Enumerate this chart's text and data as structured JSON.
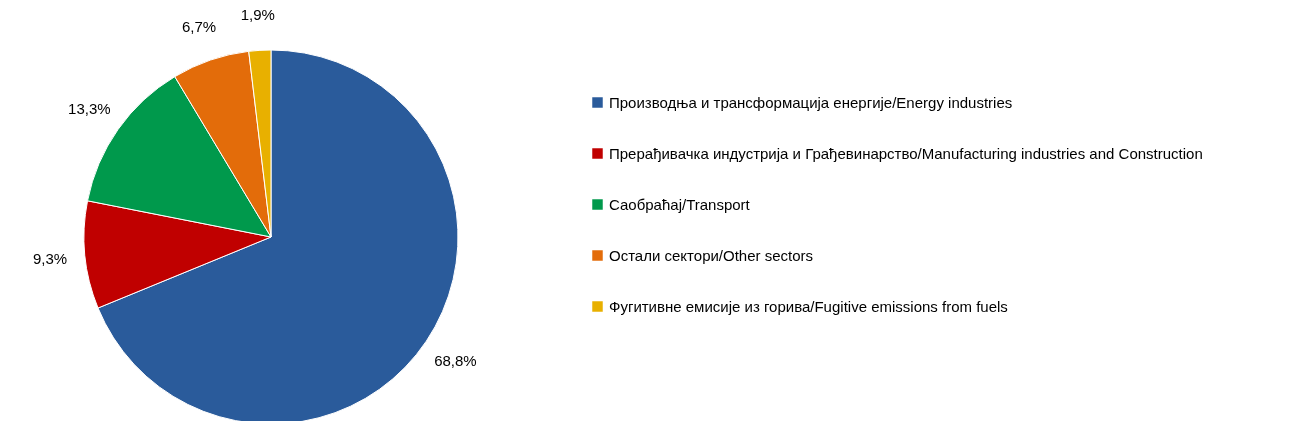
{
  "chart_data": {
    "type": "pie",
    "categories": [
      "Производња и трансформација енергије/Energy industries",
      "Прерађивачка индустрија и Грађевинарство/Manufacturing industries and Construction",
      "Саобраћај/Transport",
      "Остали сектори/Other sectors",
      "Фугитивне емисије из горива/Fugitive emissions from fuels"
    ],
    "values": [
      68.8,
      9.3,
      13.3,
      6.7,
      1.9
    ],
    "colors": [
      "#2a5b9b",
      "#c00000",
      "#00994c",
      "#e36c0a",
      "#e8b000"
    ],
    "value_labels": [
      "68,8%",
      "9,3%",
      "13,3%",
      "6,7%",
      "1,9%"
    ],
    "legend": "right"
  }
}
